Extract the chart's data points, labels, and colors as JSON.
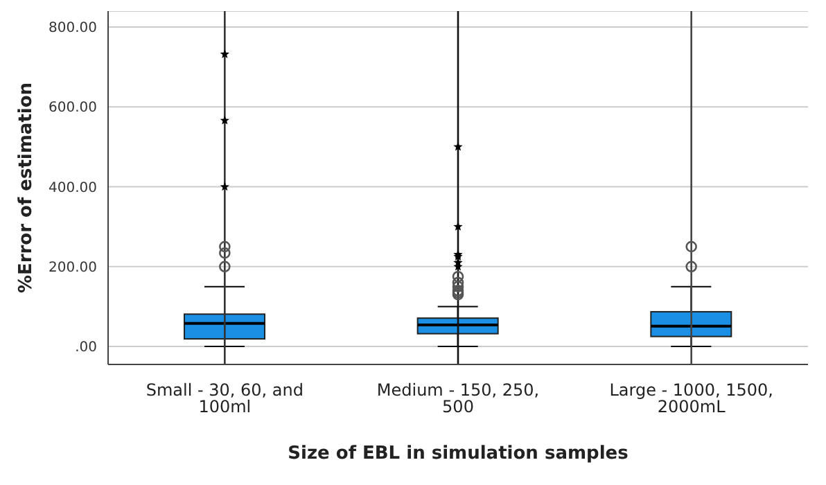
{
  "chart_data": {
    "type": "box",
    "xlabel": "Size of EBL in simulation samples",
    "ylabel": "%Error of estimation",
    "categories": [
      "Small - 30, 60, and 100ml",
      "Medium - 150, 250, 500",
      "Large - 1000, 1500, 2000mL"
    ],
    "boxes": [
      {
        "low": 0,
        "q1": 19,
        "median": 58,
        "q3": 81,
        "high": 150,
        "outliers": [
          200,
          234,
          250,
          400,
          566,
          732
        ]
      },
      {
        "low": 0,
        "q1": 32,
        "median": 54,
        "q3": 71,
        "high": 100,
        "outliers": [
          130,
          135,
          140,
          150,
          160,
          175,
          200,
          210,
          225,
          230,
          300,
          500
        ]
      },
      {
        "low": 0,
        "q1": 25,
        "median": 51,
        "q3": 87,
        "high": 150,
        "outliers": [
          200,
          250
        ]
      }
    ],
    "color": "#1a8fe3",
    "ylim": [
      -45,
      840
    ],
    "yticks": [
      {
        "value": 0,
        "label": ".00"
      },
      {
        "value": 200,
        "label": "200.00"
      },
      {
        "value": 400,
        "label": "400.00"
      },
      {
        "value": 600,
        "label": "600.00"
      },
      {
        "value": 800,
        "label": "800.00"
      }
    ],
    "grid": "y",
    "ref_lines": [
      {
        "axis": "x",
        "value": "Small - 30, 60, and 100ml",
        "color": "#333333"
      },
      {
        "axis": "x",
        "value": "Medium - 150, 250, 500",
        "color": "#111111"
      },
      {
        "axis": "x",
        "value": "Large - 1000, 1500, 2000mL",
        "color": "#444444"
      }
    ]
  }
}
